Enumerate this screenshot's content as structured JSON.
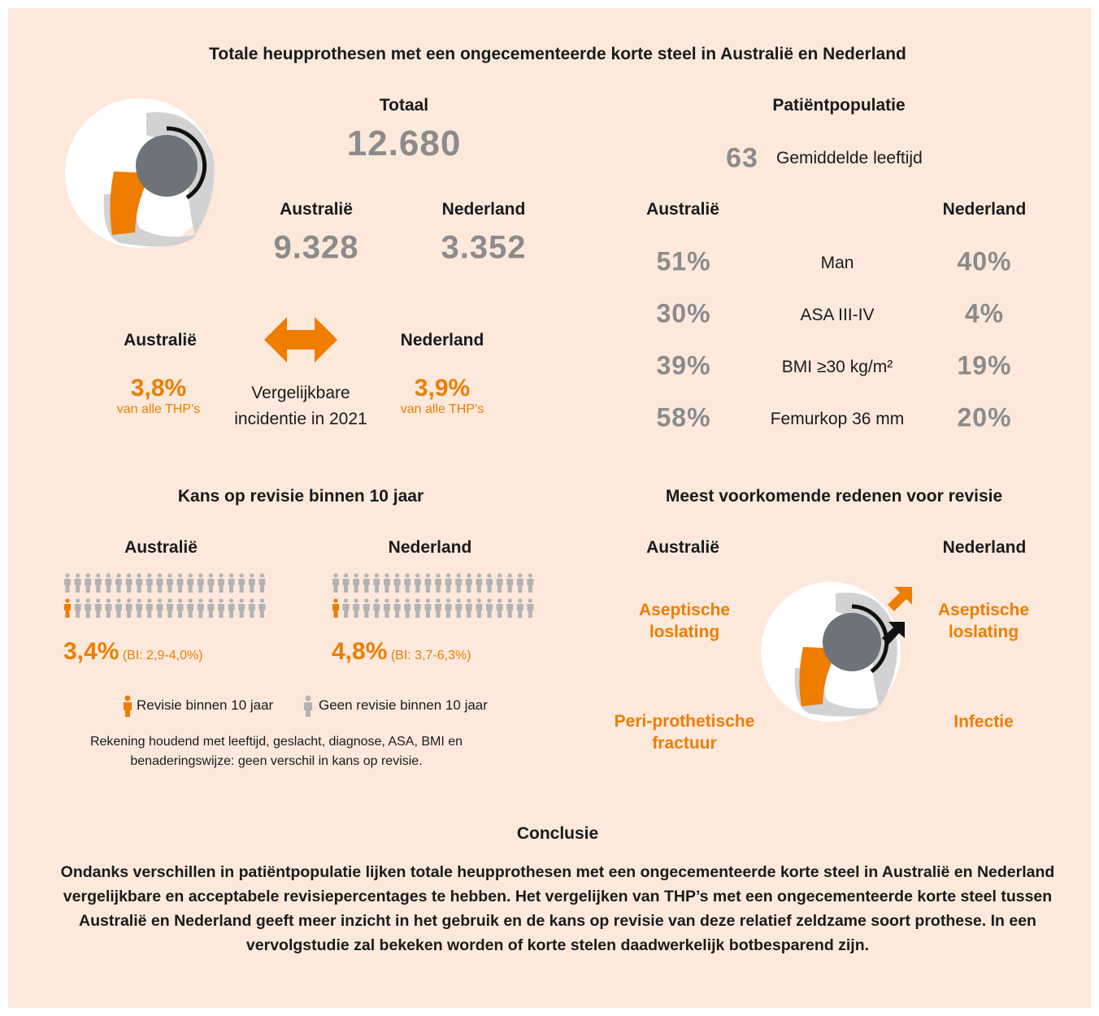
{
  "title": "Totale heupprothesen met een ongecementeerde korte steel in Australië en Nederland",
  "total": {
    "label": "Totaal",
    "value": "12.680"
  },
  "countries": [
    {
      "name": "Australië",
      "value": "9.328"
    },
    {
      "name": "Nederland",
      "value": "3.352"
    }
  ],
  "incidence": {
    "left": {
      "name": "Australië",
      "value": "3,8%",
      "sub": "van alle THP’s"
    },
    "middle": "Vergelijkbare incidentie in 2021",
    "right": {
      "name": "Nederland",
      "value": "3,9%",
      "sub": "van alle THP’s"
    }
  },
  "population": {
    "title": "Patiëntpopulatie",
    "age_value": "63",
    "age_label": "Gemiddelde leeftijd",
    "left_header": "Australië",
    "right_header": "Nederland",
    "rows": [
      {
        "left": "51%",
        "label": "Man",
        "right": "40%"
      },
      {
        "left": "30%",
        "label": "ASA III-IV",
        "right": "4%"
      },
      {
        "left": "39%",
        "label": "BMI ≥30 kg/m²",
        "right": "19%"
      },
      {
        "left": "58%",
        "label": "Femurkop 36 mm",
        "right": "20%"
      }
    ]
  },
  "revision": {
    "title": "Kans op revisie binnen 10 jaar",
    "left": {
      "name": "Australië",
      "value": "3,4%",
      "ci": "(BI: 2,9-4,0%)"
    },
    "right": {
      "name": "Nederland",
      "value": "4,8%",
      "ci": "(BI: 3,7-6,3%)"
    },
    "legend": [
      "Revisie binnen 10 jaar",
      "Geen revisie binnen 10 jaar"
    ],
    "note": "Rekening houdend met leeftijd, geslacht, diagnose, ASA, BMI en benaderingswijze: geen verschil in kans op revisie."
  },
  "reasons": {
    "title": "Meest voorkomende redenen voor revisie",
    "left_header": "Australië",
    "right_header": "Nederland",
    "items": [
      "Aseptische loslating",
      "Aseptische loslating",
      "Peri-prothetische fractuur",
      "Infectie"
    ]
  },
  "conclusion": {
    "title": "Conclusie",
    "text": "Ondanks verschillen in patiëntpopulatie lijken totale heupprothesen met een ongecementeerde korte steel in Australië en Nederland vergelijkbare en acceptabele revisiepercentages te hebben. Het vergelijken van THP’s met een ongecementeerde korte steel tussen Australië en Nederland geeft meer inzicht in het gebruik en de kans op revisie van deze relatief zeldzame soort prothese. In een vervolgstudie zal bekeken worden of korte stelen daadwerkelijk botbesparend zijn."
  }
}
